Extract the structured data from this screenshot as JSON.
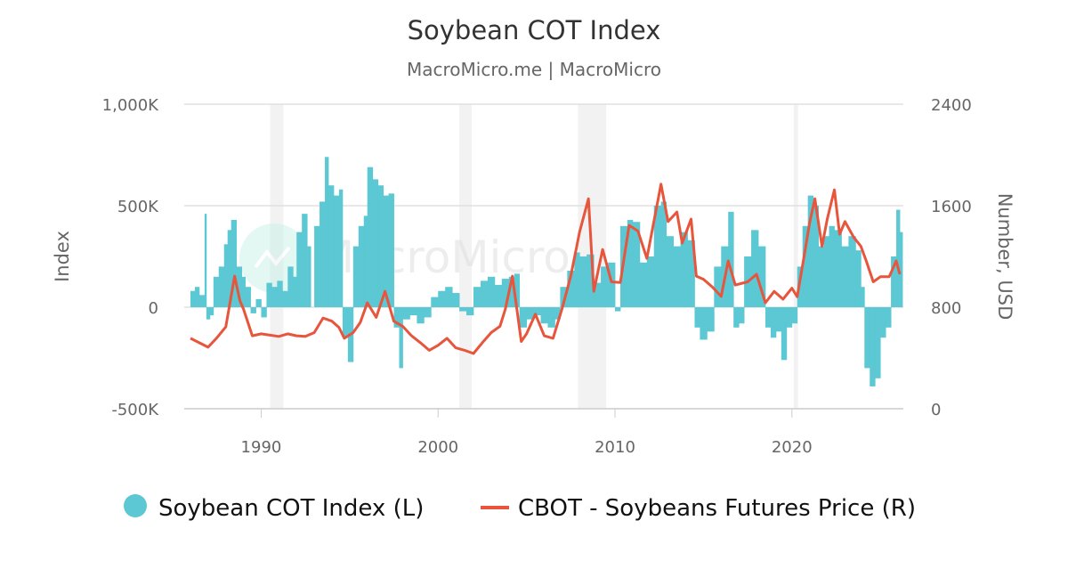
{
  "chart_data": {
    "type": "bar+line",
    "title": "Soybean COT Index",
    "subtitle": "MacroMicro.me | MacroMicro",
    "watermark": "MacroMicro",
    "y_left": {
      "label": "Index",
      "range": [
        -500000,
        1000000
      ],
      "ticks": [
        -500000,
        0,
        500000,
        1000000
      ],
      "tick_labels": [
        "-500K",
        "0",
        "500K",
        "1,000K"
      ]
    },
    "y_right": {
      "label": "Number, USD",
      "range": [
        0,
        2400
      ],
      "ticks": [
        0,
        800,
        1600,
        2400
      ],
      "tick_labels": [
        "0",
        "800",
        "1600",
        "2400"
      ]
    },
    "x": {
      "range": [
        1985.65,
        2026.3
      ],
      "ticks": [
        1990,
        2000,
        2010,
        2020
      ],
      "tick_labels": [
        "1990",
        "2000",
        "2010",
        "2020"
      ]
    },
    "grid": true,
    "legend_position": "bottom",
    "recession_bands": [
      [
        1990.5,
        1991.25
      ],
      [
        2001.2,
        2001.9
      ],
      [
        2007.9,
        2009.5
      ],
      [
        2020.1,
        2020.35
      ]
    ],
    "colors": {
      "cot": "#5bc8d4",
      "price": "#e8553d",
      "band": "#f2f2f2",
      "grid": "#e0e0e0"
    },
    "series": [
      {
        "name": "Soybean COT Index (L)",
        "type": "bar",
        "axis": "left",
        "points": [
          [
            1986.0,
            80000
          ],
          [
            1986.25,
            100000
          ],
          [
            1986.5,
            60000
          ],
          [
            1986.8,
            460000
          ],
          [
            1986.9,
            -60000
          ],
          [
            1987.1,
            -40000
          ],
          [
            1987.3,
            150000
          ],
          [
            1987.6,
            200000
          ],
          [
            1987.9,
            310000
          ],
          [
            1988.1,
            380000
          ],
          [
            1988.3,
            430000
          ],
          [
            1988.6,
            200000
          ],
          [
            1988.9,
            150000
          ],
          [
            1989.1,
            100000
          ],
          [
            1989.4,
            -30000
          ],
          [
            1989.7,
            40000
          ],
          [
            1990.0,
            -50000
          ],
          [
            1990.3,
            120000
          ],
          [
            1990.6,
            100000
          ],
          [
            1990.9,
            130000
          ],
          [
            1991.2,
            80000
          ],
          [
            1991.5,
            200000
          ],
          [
            1991.8,
            150000
          ],
          [
            1992.0,
            370000
          ],
          [
            1992.3,
            460000
          ],
          [
            1992.6,
            300000
          ],
          [
            1992.8,
            0
          ],
          [
            1993.0,
            400000
          ],
          [
            1993.3,
            520000
          ],
          [
            1993.6,
            740000
          ],
          [
            1993.8,
            600000
          ],
          [
            1994.1,
            550000
          ],
          [
            1994.4,
            580000
          ],
          [
            1994.6,
            -150000
          ],
          [
            1994.9,
            -270000
          ],
          [
            1995.2,
            300000
          ],
          [
            1995.5,
            400000
          ],
          [
            1995.8,
            450000
          ],
          [
            1996.0,
            690000
          ],
          [
            1996.3,
            630000
          ],
          [
            1996.6,
            600000
          ],
          [
            1996.9,
            550000
          ],
          [
            1997.2,
            560000
          ],
          [
            1997.5,
            -100000
          ],
          [
            1997.8,
            -300000
          ],
          [
            1998.0,
            -60000
          ],
          [
            1998.4,
            -40000
          ],
          [
            1998.8,
            -80000
          ],
          [
            1999.2,
            -50000
          ],
          [
            1999.6,
            50000
          ],
          [
            2000.0,
            80000
          ],
          [
            2000.4,
            100000
          ],
          [
            2000.8,
            70000
          ],
          [
            2001.2,
            -20000
          ],
          [
            2001.6,
            -40000
          ],
          [
            2002.0,
            100000
          ],
          [
            2002.4,
            130000
          ],
          [
            2002.8,
            150000
          ],
          [
            2003.2,
            110000
          ],
          [
            2003.6,
            140000
          ],
          [
            2004.0,
            150000
          ],
          [
            2004.3,
            165000
          ],
          [
            2004.6,
            -100000
          ],
          [
            2005.0,
            -60000
          ],
          [
            2005.4,
            -40000
          ],
          [
            2005.8,
            -80000
          ],
          [
            2006.2,
            -100000
          ],
          [
            2006.6,
            -60000
          ],
          [
            2006.9,
            100000
          ],
          [
            2007.3,
            180000
          ],
          [
            2007.7,
            270000
          ],
          [
            2008.0,
            250000
          ],
          [
            2008.4,
            260000
          ],
          [
            2008.8,
            120000
          ],
          [
            2009.2,
            200000
          ],
          [
            2009.6,
            220000
          ],
          [
            2010.0,
            -20000
          ],
          [
            2010.3,
            400000
          ],
          [
            2010.7,
            430000
          ],
          [
            2011.0,
            420000
          ],
          [
            2011.4,
            220000
          ],
          [
            2011.8,
            250000
          ],
          [
            2012.2,
            500000
          ],
          [
            2012.6,
            520000
          ],
          [
            2012.9,
            350000
          ],
          [
            2013.3,
            300000
          ],
          [
            2013.7,
            370000
          ],
          [
            2014.1,
            330000
          ],
          [
            2014.5,
            -100000
          ],
          [
            2014.8,
            -160000
          ],
          [
            2015.2,
            -120000
          ],
          [
            2015.6,
            200000
          ],
          [
            2016.0,
            300000
          ],
          [
            2016.4,
            470000
          ],
          [
            2016.7,
            -100000
          ],
          [
            2017.0,
            -80000
          ],
          [
            2017.3,
            250000
          ],
          [
            2017.7,
            380000
          ],
          [
            2018.1,
            300000
          ],
          [
            2018.5,
            -100000
          ],
          [
            2018.8,
            -150000
          ],
          [
            2019.1,
            -120000
          ],
          [
            2019.4,
            -260000
          ],
          [
            2019.7,
            -100000
          ],
          [
            2020.0,
            -80000
          ],
          [
            2020.3,
            200000
          ],
          [
            2020.6,
            400000
          ],
          [
            2020.9,
            550000
          ],
          [
            2021.2,
            500000
          ],
          [
            2021.5,
            300000
          ],
          [
            2021.8,
            350000
          ],
          [
            2022.1,
            400000
          ],
          [
            2022.4,
            380000
          ],
          [
            2022.8,
            300000
          ],
          [
            2023.2,
            350000
          ],
          [
            2023.6,
            280000
          ],
          [
            2023.9,
            100000
          ],
          [
            2024.1,
            -300000
          ],
          [
            2024.4,
            -390000
          ],
          [
            2024.7,
            -350000
          ],
          [
            2025.0,
            -150000
          ],
          [
            2025.3,
            -100000
          ],
          [
            2025.6,
            250000
          ],
          [
            2025.9,
            480000
          ],
          [
            2026.1,
            370000
          ]
        ]
      },
      {
        "name": "CBOT - Soybeans Futures Price (R)",
        "type": "line",
        "axis": "right",
        "points": [
          [
            1986.0,
            555
          ],
          [
            1986.5,
            520
          ],
          [
            1987.0,
            485
          ],
          [
            1987.5,
            560
          ],
          [
            1988.0,
            645
          ],
          [
            1988.5,
            1045
          ],
          [
            1988.8,
            850
          ],
          [
            1989.0,
            785
          ],
          [
            1989.5,
            575
          ],
          [
            1990.0,
            590
          ],
          [
            1990.5,
            580
          ],
          [
            1991.0,
            570
          ],
          [
            1991.5,
            590
          ],
          [
            1992.0,
            575
          ],
          [
            1992.5,
            570
          ],
          [
            1993.0,
            600
          ],
          [
            1993.5,
            715
          ],
          [
            1994.0,
            690
          ],
          [
            1994.4,
            640
          ],
          [
            1994.7,
            555
          ],
          [
            1995.2,
            600
          ],
          [
            1995.6,
            680
          ],
          [
            1996.0,
            835
          ],
          [
            1996.5,
            720
          ],
          [
            1997.0,
            925
          ],
          [
            1997.5,
            690
          ],
          [
            1998.0,
            650
          ],
          [
            1998.5,
            575
          ],
          [
            1999.0,
            520
          ],
          [
            1999.5,
            460
          ],
          [
            2000.0,
            500
          ],
          [
            2000.5,
            555
          ],
          [
            2001.0,
            480
          ],
          [
            2001.5,
            460
          ],
          [
            2002.0,
            435
          ],
          [
            2002.5,
            520
          ],
          [
            2003.0,
            600
          ],
          [
            2003.5,
            650
          ],
          [
            2003.8,
            785
          ],
          [
            2004.2,
            1045
          ],
          [
            2004.7,
            530
          ],
          [
            2005.0,
            590
          ],
          [
            2005.5,
            745
          ],
          [
            2006.0,
            575
          ],
          [
            2006.5,
            555
          ],
          [
            2007.0,
            785
          ],
          [
            2007.5,
            1045
          ],
          [
            2008.0,
            1395
          ],
          [
            2008.5,
            1655
          ],
          [
            2008.8,
            925
          ],
          [
            2009.3,
            1255
          ],
          [
            2009.8,
            1000
          ],
          [
            2010.3,
            995
          ],
          [
            2010.8,
            1445
          ],
          [
            2011.3,
            1400
          ],
          [
            2011.8,
            1185
          ],
          [
            2012.2,
            1475
          ],
          [
            2012.6,
            1770
          ],
          [
            2013.0,
            1475
          ],
          [
            2013.5,
            1550
          ],
          [
            2013.8,
            1305
          ],
          [
            2014.3,
            1495
          ],
          [
            2014.6,
            1045
          ],
          [
            2015.0,
            1020
          ],
          [
            2015.5,
            960
          ],
          [
            2016.0,
            885
          ],
          [
            2016.4,
            1165
          ],
          [
            2016.8,
            975
          ],
          [
            2017.5,
            1000
          ],
          [
            2018.0,
            1060
          ],
          [
            2018.5,
            835
          ],
          [
            2019.0,
            925
          ],
          [
            2019.5,
            863
          ],
          [
            2020.0,
            950
          ],
          [
            2020.3,
            883
          ],
          [
            2020.7,
            1210
          ],
          [
            2021.0,
            1465
          ],
          [
            2021.3,
            1655
          ],
          [
            2021.7,
            1280
          ],
          [
            2022.0,
            1495
          ],
          [
            2022.4,
            1725
          ],
          [
            2022.7,
            1375
          ],
          [
            2023.0,
            1475
          ],
          [
            2023.5,
            1350
          ],
          [
            2023.9,
            1280
          ],
          [
            2024.2,
            1165
          ],
          [
            2024.6,
            1000
          ],
          [
            2025.0,
            1040
          ],
          [
            2025.5,
            1040
          ],
          [
            2025.9,
            1165
          ],
          [
            2026.1,
            1060
          ]
        ]
      }
    ]
  }
}
